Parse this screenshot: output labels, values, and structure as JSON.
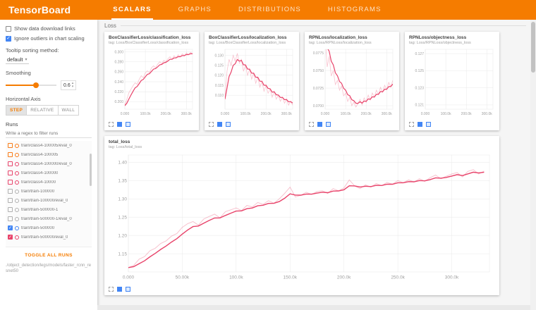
{
  "colors": {
    "header": "#f57c00",
    "accent_orange": "#f57c00",
    "pink": "#e8436a",
    "blue": "#4285f4",
    "grey_run": "#b0b0b0"
  },
  "header": {
    "brand": "TensorBoard",
    "tabs": [
      {
        "label": "SCALARS",
        "active": true
      },
      {
        "label": "GRAPHS",
        "active": false
      },
      {
        "label": "DISTRIBUTIONS",
        "active": false
      },
      {
        "label": "HISTOGRAMS",
        "active": false
      }
    ]
  },
  "sidebar": {
    "checkboxes": [
      {
        "label": "Show data download links",
        "checked": false
      },
      {
        "label": "Ignore outliers in chart scaling",
        "checked": true
      }
    ],
    "tooltip_sorting": {
      "label": "Tooltip sorting method:",
      "value": "default"
    },
    "smoothing": {
      "label": "Smoothing",
      "value": "0.6"
    },
    "horizontal_axis": {
      "label": "Horizontal Axis",
      "options": [
        {
          "label": "STEP",
          "active": true
        },
        {
          "label": "RELATIVE",
          "active": false
        },
        {
          "label": "WALL",
          "active": false
        }
      ]
    },
    "runs": {
      "label": "Runs",
      "filter_placeholder": "Write a regex to filter runs",
      "items": [
        {
          "label": "train/class4-100005/eval_0",
          "color": "#fa7b17",
          "checked": false
        },
        {
          "label": "train/class4-100005",
          "color": "#fa7b17",
          "checked": false
        },
        {
          "label": "train/class4-100000/eval_0",
          "color": "#e8436a",
          "checked": false
        },
        {
          "label": "train/class4-100000",
          "color": "#e8436a",
          "checked": false
        },
        {
          "label": "train/class4-10000",
          "color": "#e8436a",
          "checked": false
        },
        {
          "label": "train/train-100000",
          "color": "#b0b0b0",
          "checked": false
        },
        {
          "label": "train/train-100000/eval_0",
          "color": "#b0b0b0",
          "checked": false
        },
        {
          "label": "train/train-500000-1",
          "color": "#b0b0b0",
          "checked": false
        },
        {
          "label": "train/train-500000-1/eval_0",
          "color": "#b0b0b0",
          "checked": false
        },
        {
          "label": "train/train-500000",
          "color": "#4285f4",
          "checked": true
        },
        {
          "label": "train/train-500000/eval_0",
          "color": "#e8436a",
          "checked": true
        }
      ],
      "toggle_all_label": "TOGGLE ALL RUNS",
      "path": "./object_detection/legs/models/faster_rcnn_resnet50"
    }
  },
  "main": {
    "group_label": "Loss"
  },
  "chart_data": [
    {
      "type": "line",
      "card": "small",
      "title": "BoxClassifierLoss/classification_loss",
      "tag": "tag: Loss/BoxClassifierLoss/classification_loss",
      "ylim": [
        0.185,
        0.305
      ],
      "yticks": [
        {
          "v": 0.2,
          "label": "0.200"
        },
        {
          "v": 0.22,
          "label": "0.220"
        },
        {
          "v": 0.24,
          "label": "0.240"
        },
        {
          "v": 0.26,
          "label": "0.260"
        },
        {
          "v": 0.28,
          "label": "0.280"
        },
        {
          "v": 0.3,
          "label": "0.300"
        }
      ],
      "xlim": [
        0,
        330000
      ],
      "xticks": [
        {
          "v": 0,
          "label": "0.000"
        },
        {
          "v": 100000,
          "label": "100.0k"
        },
        {
          "v": 200000,
          "label": "200.0k"
        },
        {
          "v": 300000,
          "label": "300.0k"
        }
      ],
      "series": [
        {
          "name": "train/train-500000/eval_0",
          "color": "#e8436a",
          "x_start": 0,
          "x_step": 10000,
          "values": [
            0.192,
            0.205,
            0.218,
            0.225,
            0.232,
            0.238,
            0.235,
            0.245,
            0.252,
            0.248,
            0.258,
            0.262,
            0.258,
            0.268,
            0.272,
            0.268,
            0.275,
            0.28,
            0.276,
            0.283,
            0.28,
            0.286,
            0.29,
            0.285,
            0.292,
            0.288,
            0.294,
            0.29,
            0.296,
            0.292,
            0.298,
            0.294,
            0.299,
            0.296
          ]
        }
      ]
    },
    {
      "type": "line",
      "card": "small",
      "title": "BoxClassifierLoss/localization_loss",
      "tag": "tag: Loss/BoxClassifierLoss/localization_loss",
      "ylim": [
        0.103,
        0.133
      ],
      "yticks": [
        {
          "v": 0.11,
          "label": "0.110"
        },
        {
          "v": 0.115,
          "label": "0.115"
        },
        {
          "v": 0.12,
          "label": "0.120"
        },
        {
          "v": 0.125,
          "label": "0.125"
        },
        {
          "v": 0.13,
          "label": "0.130"
        }
      ],
      "xlim": [
        0,
        330000
      ],
      "xticks": [
        {
          "v": 0,
          "label": "0.000"
        },
        {
          "v": 100000,
          "label": "100.0k"
        },
        {
          "v": 200000,
          "label": "200.0k"
        },
        {
          "v": 300000,
          "label": "300.0k"
        }
      ],
      "series": [
        {
          "name": "train/train-500000/eval_0",
          "color": "#e8436a",
          "x_start": 0,
          "x_step": 10000,
          "values": [
            0.108,
            0.122,
            0.128,
            0.125,
            0.13,
            0.127,
            0.131,
            0.126,
            0.128,
            0.122,
            0.125,
            0.12,
            0.123,
            0.118,
            0.121,
            0.116,
            0.119,
            0.114,
            0.117,
            0.112,
            0.115,
            0.111,
            0.113,
            0.109,
            0.112,
            0.108,
            0.11,
            0.107,
            0.109,
            0.106,
            0.108,
            0.105,
            0.107,
            0.105
          ]
        }
      ]
    },
    {
      "type": "line",
      "card": "small",
      "title": "RPNLoss/localization_loss",
      "tag": "tag: Loss/RPNLoss/localization_loss",
      "ylim": [
        0.0695,
        0.078
      ],
      "yticks": [
        {
          "v": 0.07,
          "label": "0.0700"
        },
        {
          "v": 0.0725,
          "label": "0.0725"
        },
        {
          "v": 0.075,
          "label": "0.0750"
        },
        {
          "v": 0.0775,
          "label": "0.0775"
        }
      ],
      "xlim": [
        0,
        330000
      ],
      "xticks": [
        {
          "v": 0,
          "label": "0.000"
        },
        {
          "v": 100000,
          "label": "100.0k"
        },
        {
          "v": 200000,
          "label": "200.0k"
        },
        {
          "v": 300000,
          "label": "300.0k"
        }
      ],
      "series": [
        {
          "name": "train/train-500000/eval_0",
          "color": "#e8436a",
          "x_start": 0,
          "x_step": 10000,
          "values": [
            0.08,
            0.0755,
            0.077,
            0.0742,
            0.075,
            0.073,
            0.0736,
            0.0722,
            0.0728,
            0.0714,
            0.0718,
            0.0706,
            0.0712,
            0.07,
            0.0705,
            0.0698,
            0.0703,
            0.0709,
            0.0701,
            0.0711,
            0.0705,
            0.0715,
            0.0708,
            0.0718,
            0.0712,
            0.0722,
            0.0716,
            0.0726,
            0.0719,
            0.0729,
            0.0723,
            0.0733,
            0.0727,
            0.0736
          ]
        }
      ]
    },
    {
      "type": "line",
      "card": "small",
      "title": "RPNLoss/objectness_loss",
      "tag": "tag: Loss/RPNLoss/objectness_loss",
      "ylim": [
        0.1205,
        0.1275
      ],
      "yticks": [
        {
          "v": 0.121,
          "label": "0.121"
        },
        {
          "v": 0.123,
          "label": "0.123"
        },
        {
          "v": 0.125,
          "label": "0.125"
        },
        {
          "v": 0.127,
          "label": "0.127"
        }
      ],
      "xlim": [
        0,
        330000
      ],
      "xticks": [
        {
          "v": 0,
          "label": "0.000"
        },
        {
          "v": 100000,
          "label": "100.0k"
        },
        {
          "v": 200000,
          "label": "200.0k"
        },
        {
          "v": 300000,
          "label": "300.0k"
        }
      ],
      "series": []
    },
    {
      "type": "line",
      "card": "large",
      "title": "total_loss",
      "tag": "tag: Loss/total_loss",
      "ylim": [
        1.1,
        1.42
      ],
      "yticks": [
        {
          "v": 1.15,
          "label": "1.15"
        },
        {
          "v": 1.2,
          "label": "1.20"
        },
        {
          "v": 1.25,
          "label": "1.25"
        },
        {
          "v": 1.3,
          "label": "1.30"
        },
        {
          "v": 1.35,
          "label": "1.35"
        },
        {
          "v": 1.4,
          "label": "1.40"
        }
      ],
      "xlim": [
        0,
        335000
      ],
      "xticks": [
        {
          "v": 0,
          "label": "0.000"
        },
        {
          "v": 50000,
          "label": "50.00k"
        },
        {
          "v": 100000,
          "label": "100.0k"
        },
        {
          "v": 150000,
          "label": "150.0k"
        },
        {
          "v": 200000,
          "label": "200.0k"
        },
        {
          "v": 250000,
          "label": "250.0k"
        },
        {
          "v": 300000,
          "label": "300.0k"
        }
      ],
      "series": [
        {
          "name": "train/train-500000/eval_0",
          "color": "#e8436a",
          "x_start": 0,
          "x_step": 5000,
          "values": [
            1.112,
            1.118,
            1.135,
            1.142,
            1.158,
            1.165,
            1.178,
            1.185,
            1.198,
            1.205,
            1.222,
            1.232,
            1.238,
            1.228,
            1.245,
            1.252,
            1.258,
            1.248,
            1.265,
            1.27,
            1.275,
            1.268,
            1.282,
            1.278,
            1.29,
            1.285,
            1.295,
            1.288,
            1.3,
            1.315,
            1.332,
            1.305,
            1.31,
            1.318,
            1.312,
            1.32,
            1.322,
            1.315,
            1.328,
            1.322,
            1.33,
            1.352,
            1.335,
            1.328,
            1.338,
            1.332,
            1.342,
            1.336,
            1.345,
            1.34,
            1.35,
            1.344,
            1.352,
            1.346,
            1.355,
            1.348,
            1.358,
            1.365,
            1.355,
            1.362,
            1.368,
            1.372,
            1.36,
            1.375,
            1.38,
            1.368,
            1.376
          ]
        }
      ]
    }
  ]
}
